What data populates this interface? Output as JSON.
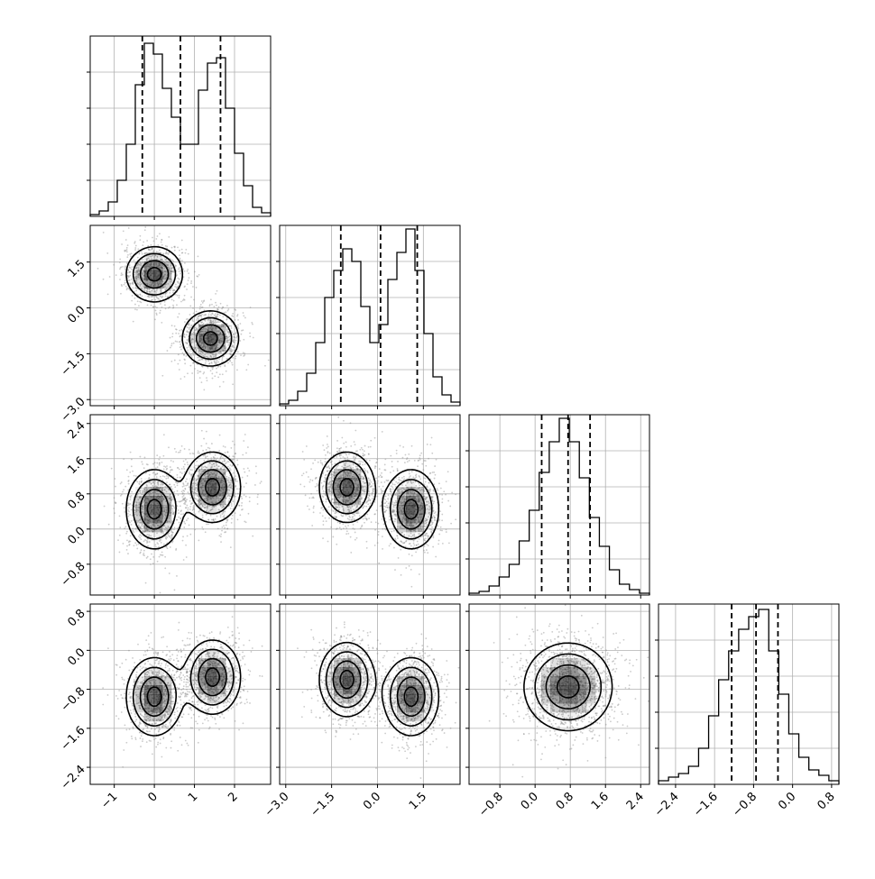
{
  "chart_data": {
    "type": "corner",
    "dims": [
      {
        "index": 0,
        "range": [
          -1.6,
          2.9
        ],
        "ticks": [
          -1,
          0,
          1,
          2
        ],
        "tick_labels": [
          "−1",
          "0",
          "1",
          "2"
        ],
        "quantiles": [
          -0.3,
          0.65,
          1.65
        ]
      },
      {
        "index": 1,
        "range": [
          -3.2,
          2.7
        ],
        "ticks": [
          -3.0,
          -1.5,
          0.0,
          1.5
        ],
        "tick_labels": [
          "−3.0",
          "−1.5",
          "0.0",
          "1.5"
        ],
        "quantiles": [
          -1.2,
          0.1,
          1.3
        ]
      },
      {
        "index": 2,
        "range": [
          -1.5,
          2.6
        ],
        "ticks": [
          -0.8,
          0.0,
          0.8,
          1.6,
          2.4
        ],
        "tick_labels": [
          "−0.8",
          "0.0",
          "0.8",
          "1.6",
          "2.4"
        ],
        "quantiles": [
          0.15,
          0.75,
          1.25
        ]
      },
      {
        "index": 3,
        "range": [
          -2.75,
          0.95
        ],
        "ticks": [
          -2.4,
          -1.6,
          -0.8,
          0.0,
          0.8
        ],
        "tick_labels": [
          "−2.4",
          "−1.6",
          "−0.8",
          "0.0",
          "0.8"
        ],
        "quantiles": [
          -1.25,
          -0.75,
          -0.3
        ]
      }
    ],
    "histograms": [
      {
        "dim": 0,
        "counts": [
          0.01,
          0.03,
          0.08,
          0.2,
          0.4,
          0.73,
          0.96,
          0.9,
          0.71,
          0.55,
          0.4,
          0.4,
          0.7,
          0.85,
          0.88,
          0.6,
          0.35,
          0.17,
          0.05,
          0.02
        ]
      },
      {
        "dim": 1,
        "counts": [
          0.01,
          0.03,
          0.08,
          0.18,
          0.35,
          0.6,
          0.75,
          0.87,
          0.8,
          0.55,
          0.35,
          0.45,
          0.7,
          0.85,
          0.98,
          0.75,
          0.4,
          0.16,
          0.06,
          0.02
        ]
      },
      {
        "dim": 2,
        "counts": [
          0.01,
          0.02,
          0.05,
          0.1,
          0.17,
          0.3,
          0.47,
          0.68,
          0.85,
          0.98,
          0.85,
          0.65,
          0.43,
          0.27,
          0.14,
          0.06,
          0.03,
          0.01
        ]
      },
      {
        "dim": 3,
        "counts": [
          0.02,
          0.04,
          0.06,
          0.1,
          0.2,
          0.38,
          0.58,
          0.74,
          0.86,
          0.93,
          0.97,
          0.74,
          0.5,
          0.28,
          0.15,
          0.08,
          0.05,
          0.02
        ]
      }
    ],
    "joint_panels": [
      {
        "x_dim": 0,
        "y_dim": 1,
        "modes": [
          {
            "cx": 0.0,
            "cy": 1.1,
            "sx": 0.35,
            "sy": 0.45
          },
          {
            "cx": 1.4,
            "cy": -1.0,
            "sx": 0.35,
            "sy": 0.45
          }
        ]
      },
      {
        "x_dim": 0,
        "y_dim": 2,
        "modes": [
          {
            "cx": 0.0,
            "cy": 0.45,
            "sx": 0.35,
            "sy": 0.45
          },
          {
            "cx": 1.45,
            "cy": 0.95,
            "sx": 0.35,
            "sy": 0.4
          }
        ]
      },
      {
        "x_dim": 1,
        "y_dim": 2,
        "modes": [
          {
            "cx": -1.0,
            "cy": 0.95,
            "sx": 0.45,
            "sy": 0.4
          },
          {
            "cx": 1.1,
            "cy": 0.45,
            "sx": 0.45,
            "sy": 0.45
          }
        ]
      },
      {
        "x_dim": 0,
        "y_dim": 3,
        "modes": [
          {
            "cx": 0.0,
            "cy": -0.95,
            "sx": 0.35,
            "sy": 0.4
          },
          {
            "cx": 1.45,
            "cy": -0.55,
            "sx": 0.35,
            "sy": 0.38
          }
        ]
      },
      {
        "x_dim": 1,
        "y_dim": 3,
        "modes": [
          {
            "cx": -1.0,
            "cy": -0.6,
            "sx": 0.45,
            "sy": 0.38
          },
          {
            "cx": 1.1,
            "cy": -0.95,
            "sx": 0.45,
            "sy": 0.4
          }
        ]
      },
      {
        "x_dim": 2,
        "y_dim": 3,
        "modes": [
          {
            "cx": 0.75,
            "cy": -0.75,
            "sx": 0.5,
            "sy": 0.45
          }
        ]
      }
    ],
    "contour_levels": [
      0.5,
      1.0,
      1.5,
      2.0
    ],
    "colors": {
      "line": "#000000",
      "grid": "#b0b0b0",
      "density": "#000000",
      "points": "#8c8c8c"
    },
    "grid": true
  }
}
